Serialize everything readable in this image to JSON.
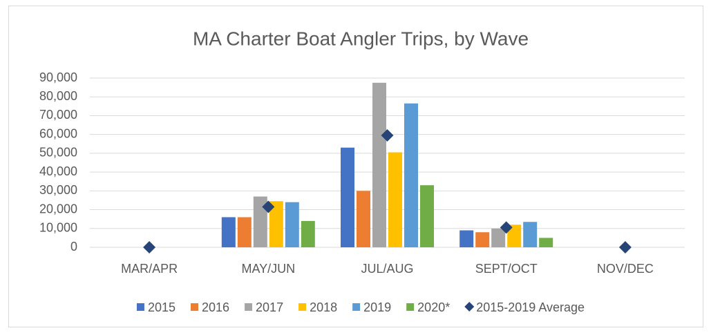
{
  "chart_data": {
    "type": "bar",
    "title": "MA Charter Boat Angler Trips, by Wave",
    "categories": [
      "MAR/APR",
      "MAY/JUN",
      "JUL/AUG",
      "SEPT/OCT",
      "NOV/DEC"
    ],
    "series": [
      {
        "name": "2015",
        "color": "#4472c4",
        "values": [
          0,
          16000,
          53000,
          9000,
          0
        ]
      },
      {
        "name": "2016",
        "color": "#ed7d31",
        "values": [
          0,
          16000,
          30000,
          8000,
          0
        ]
      },
      {
        "name": "2017",
        "color": "#a5a5a5",
        "values": [
          0,
          27000,
          87500,
          10000,
          0
        ]
      },
      {
        "name": "2018",
        "color": "#ffc000",
        "values": [
          0,
          24500,
          50500,
          12000,
          0
        ]
      },
      {
        "name": "2019",
        "color": "#5b9bd5",
        "values": [
          0,
          24000,
          76500,
          13500,
          0
        ]
      },
      {
        "name": "2020*",
        "color": "#70ad47",
        "values": [
          0,
          14000,
          33000,
          5000,
          0
        ]
      },
      {
        "name": "2015-2019 Average",
        "color": "#264478",
        "marker": "diamond",
        "values": [
          0,
          21500,
          59500,
          10500,
          0
        ]
      }
    ],
    "ylim": [
      0,
      90000
    ],
    "yticks": [
      0,
      {
        "value": 10000,
        "label": "10,000"
      },
      {
        "value": 20000,
        "label": "20,000"
      },
      {
        "value": 30000,
        "label": "30,000"
      },
      {
        "value": 40000,
        "label": "40,000"
      },
      {
        "value": 50000,
        "label": "50,000"
      },
      {
        "value": 60000,
        "label": "60,000"
      },
      {
        "value": 70000,
        "label": "70,000"
      },
      {
        "value": 80000,
        "label": "80,000"
      },
      {
        "value": 90000,
        "label": "90,000"
      }
    ],
    "grid": true,
    "legend": "bottom"
  }
}
